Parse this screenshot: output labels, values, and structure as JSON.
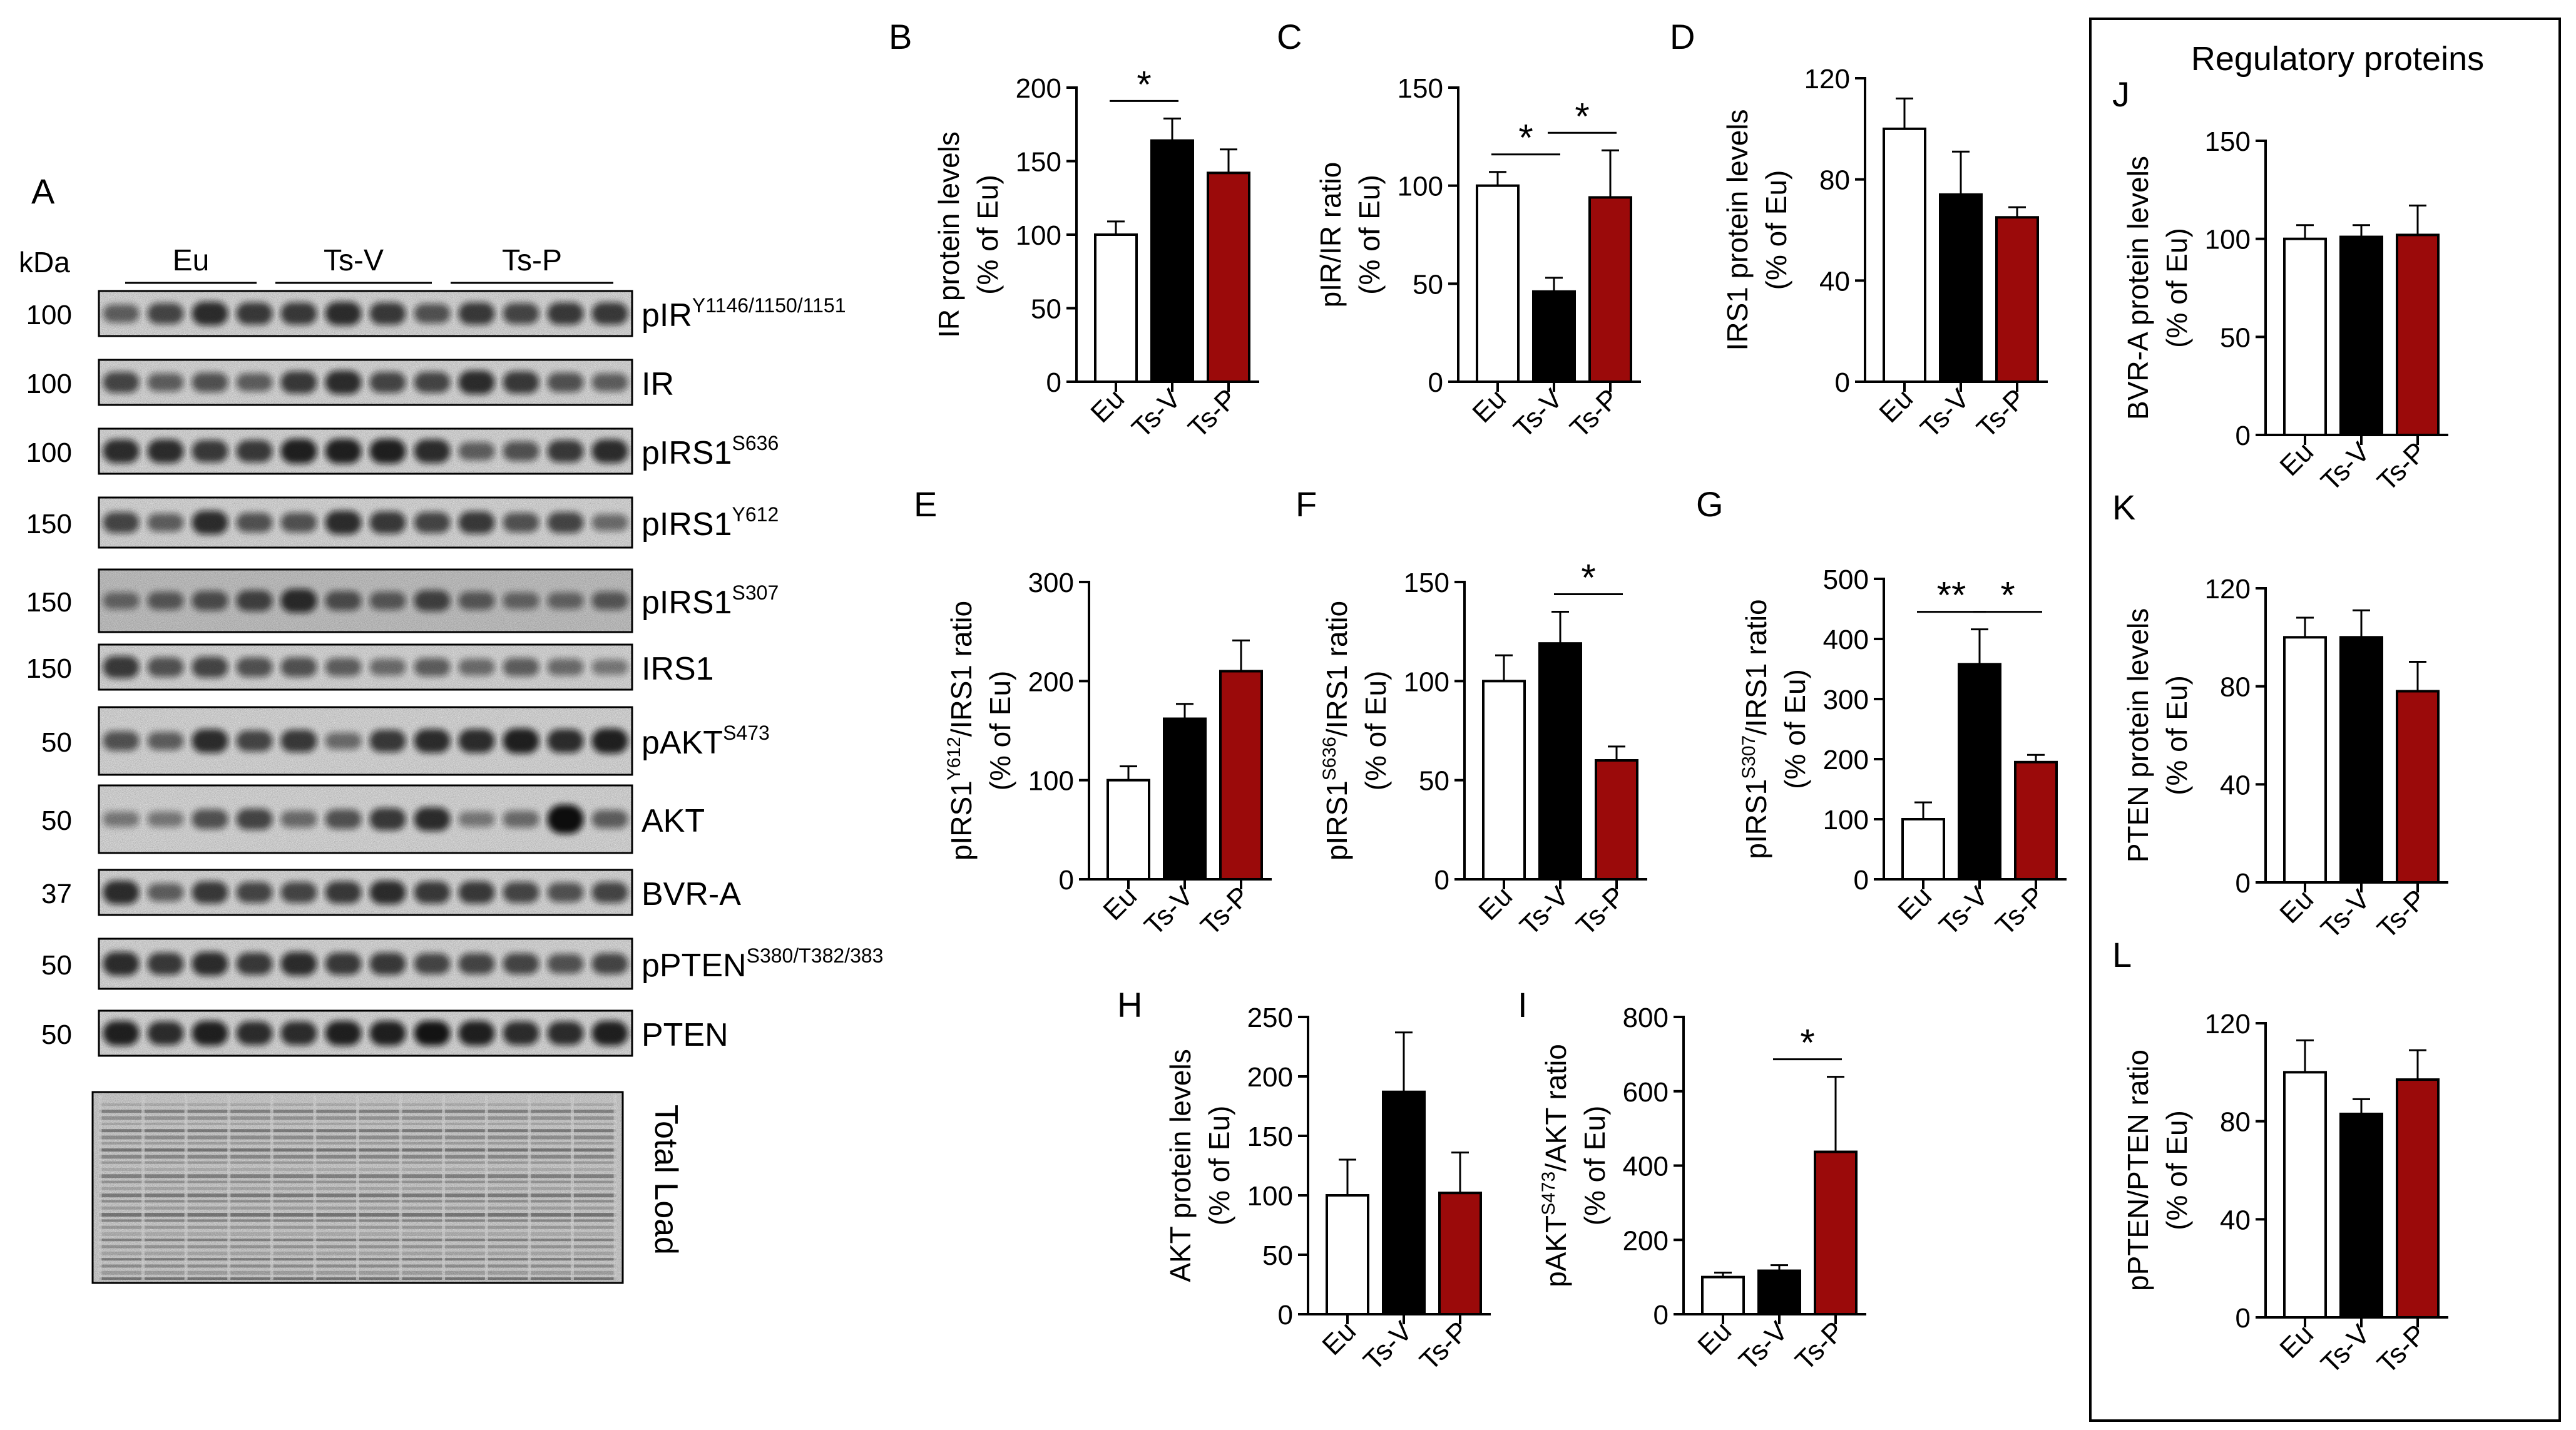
{
  "blot_panel": {
    "letter": "A",
    "kda_label": "kDa",
    "groups": [
      "Eu",
      "Ts-V",
      "Ts-P"
    ],
    "total_load_label": "Total Load",
    "rows": [
      {
        "kda": "100",
        "name": "pIR",
        "sup": "Y1146/1150/1151"
      },
      {
        "kda": "100",
        "name": "IR",
        "sup": ""
      },
      {
        "kda": "100",
        "name": "pIRS1",
        "sup": "S636"
      },
      {
        "kda": "150",
        "name": "pIRS1",
        "sup": "Y612"
      },
      {
        "kda": "150",
        "name": "pIRS1",
        "sup": "S307"
      },
      {
        "kda": "150",
        "name": "IRS1",
        "sup": ""
      },
      {
        "kda": "50",
        "name": "pAKT",
        "sup": "S473"
      },
      {
        "kda": "50",
        "name": "AKT",
        "sup": ""
      },
      {
        "kda": "37",
        "name": "BVR-A",
        "sup": ""
      },
      {
        "kda": "50",
        "name": "pPTEN",
        "sup": "S380/T382/383"
      },
      {
        "kda": "50",
        "name": "PTEN",
        "sup": ""
      }
    ]
  },
  "regulatory_box": {
    "title": "Regulatory proteins"
  },
  "colors": {
    "Eu": "#ffffff",
    "Ts-V": "#000000",
    "Ts-P": "#9b0a0a"
  },
  "chart_data": [
    {
      "id": "B",
      "type": "bar",
      "categories": [
        "Eu",
        "Ts-V",
        "Ts-P"
      ],
      "values": [
        100,
        164,
        142
      ],
      "errors": [
        9,
        15,
        16
      ],
      "ylim": [
        0,
        200
      ],
      "ticks": [
        0,
        50,
        100,
        150,
        200
      ],
      "ylabel": [
        [
          {
            "t": "IR protein levels"
          }
        ],
        [
          {
            "t": "(% of Eu)"
          }
        ]
      ],
      "sig": [
        {
          "a": 0,
          "b": 1,
          "label": "*"
        }
      ]
    },
    {
      "id": "C",
      "type": "bar",
      "categories": [
        "Eu",
        "Ts-V",
        "Ts-P"
      ],
      "values": [
        100,
        46,
        94
      ],
      "errors": [
        7,
        7,
        24
      ],
      "ylim": [
        0,
        150
      ],
      "ticks": [
        0,
        50,
        100,
        150
      ],
      "ylabel": [
        [
          {
            "t": "pIR/IR ratio"
          }
        ],
        [
          {
            "t": "(% of Eu)"
          }
        ]
      ],
      "sig": [
        {
          "a": 0,
          "b": 1,
          "label": "*"
        },
        {
          "a": 1,
          "b": 2,
          "label": "*"
        }
      ]
    },
    {
      "id": "D",
      "type": "bar",
      "categories": [
        "Eu",
        "Ts-V",
        "Ts-P"
      ],
      "values": [
        100,
        74,
        65
      ],
      "errors": [
        12,
        17,
        4
      ],
      "ylim": [
        0,
        120
      ],
      "ticks": [
        0,
        40,
        80,
        120
      ],
      "ylabel": [
        [
          {
            "t": "IRS1 protein levels"
          }
        ],
        [
          {
            "t": "(% of Eu)"
          }
        ]
      ],
      "sig": []
    },
    {
      "id": "E",
      "type": "bar",
      "categories": [
        "Eu",
        "Ts-V",
        "Ts-P"
      ],
      "values": [
        100,
        162,
        210
      ],
      "errors": [
        14,
        15,
        31
      ],
      "ylim": [
        0,
        300
      ],
      "ticks": [
        0,
        100,
        200,
        300
      ],
      "ylabel": [
        [
          {
            "t": "pIRS1"
          },
          {
            "t": "Y612",
            "sup": true
          },
          {
            "t": "/IRS1 ratio"
          }
        ],
        [
          {
            "t": "(% of Eu)"
          }
        ]
      ],
      "sig": []
    },
    {
      "id": "F",
      "type": "bar",
      "categories": [
        "Eu",
        "Ts-V",
        "Ts-P"
      ],
      "values": [
        100,
        119,
        60
      ],
      "errors": [
        13,
        16,
        7
      ],
      "ylim": [
        0,
        150
      ],
      "ticks": [
        0,
        50,
        100,
        150
      ],
      "ylabel": [
        [
          {
            "t": "pIRS1"
          },
          {
            "t": "S636",
            "sup": true
          },
          {
            "t": "/IRS1 ratio"
          }
        ],
        [
          {
            "t": "(% of Eu)"
          }
        ]
      ],
      "sig": [
        {
          "a": 1,
          "b": 2,
          "label": "*"
        }
      ]
    },
    {
      "id": "G",
      "type": "bar",
      "categories": [
        "Eu",
        "Ts-V",
        "Ts-P"
      ],
      "values": [
        100,
        358,
        195
      ],
      "errors": [
        28,
        58,
        12
      ],
      "ylim": [
        0,
        500
      ],
      "ticks": [
        0,
        100,
        200,
        300,
        400,
        500
      ],
      "ylabel": [
        [
          {
            "t": "pIRS1"
          },
          {
            "t": "S307",
            "sup": true
          },
          {
            "t": "/IRS1 ratio"
          }
        ],
        [
          {
            "t": "(% of Eu)"
          }
        ]
      ],
      "sig": [
        {
          "a": 0,
          "b": 1,
          "label": "**"
        },
        {
          "a": 1,
          "b": 2,
          "label": "*"
        }
      ]
    },
    {
      "id": "H",
      "type": "bar",
      "categories": [
        "Eu",
        "Ts-V",
        "Ts-P"
      ],
      "values": [
        100,
        187,
        102
      ],
      "errors": [
        30,
        50,
        34
      ],
      "ylim": [
        0,
        250
      ],
      "ticks": [
        0,
        50,
        100,
        150,
        200,
        250
      ],
      "ylabel": [
        [
          {
            "t": "AKT protein levels"
          }
        ],
        [
          {
            "t": "(% of Eu)"
          }
        ]
      ],
      "sig": []
    },
    {
      "id": "I",
      "type": "bar",
      "categories": [
        "Eu",
        "Ts-V",
        "Ts-P"
      ],
      "values": [
        100,
        117,
        437
      ],
      "errors": [
        12,
        15,
        202
      ],
      "ylim": [
        0,
        800
      ],
      "ticks": [
        0,
        200,
        400,
        600,
        800
      ],
      "ylabel": [
        [
          {
            "t": "pAKT"
          },
          {
            "t": "S473",
            "sup": true
          },
          {
            "t": "/AKT ratio"
          }
        ],
        [
          {
            "t": "(% of Eu)"
          }
        ]
      ],
      "sig": [
        {
          "a": 1,
          "b": 2,
          "label": "*"
        }
      ]
    },
    {
      "id": "J",
      "type": "bar",
      "categories": [
        "Eu",
        "Ts-V",
        "Ts-P"
      ],
      "values": [
        100,
        101,
        102
      ],
      "errors": [
        7,
        6,
        15
      ],
      "ylim": [
        0,
        150
      ],
      "ticks": [
        0,
        50,
        100,
        150
      ],
      "ylabel": [
        [
          {
            "t": "BVR-A protein levels"
          }
        ],
        [
          {
            "t": "(% of Eu)"
          }
        ]
      ],
      "sig": []
    },
    {
      "id": "K",
      "type": "bar",
      "categories": [
        "Eu",
        "Ts-V",
        "Ts-P"
      ],
      "values": [
        100,
        100,
        78
      ],
      "errors": [
        8,
        11,
        12
      ],
      "ylim": [
        0,
        120
      ],
      "ticks": [
        0,
        40,
        80,
        120
      ],
      "ylabel": [
        [
          {
            "t": "PTEN protein levels"
          }
        ],
        [
          {
            "t": "(% of Eu)"
          }
        ]
      ],
      "sig": []
    },
    {
      "id": "L",
      "type": "bar",
      "categories": [
        "Eu",
        "Ts-V",
        "Ts-P"
      ],
      "values": [
        100,
        83,
        97
      ],
      "errors": [
        13,
        6,
        12
      ],
      "ylim": [
        0,
        120
      ],
      "ticks": [
        0,
        40,
        80,
        120
      ],
      "ylabel": [
        [
          {
            "t": "pPTEN/PTEN ratio"
          }
        ],
        [
          {
            "t": "(% of Eu)"
          }
        ]
      ],
      "sig": []
    }
  ]
}
